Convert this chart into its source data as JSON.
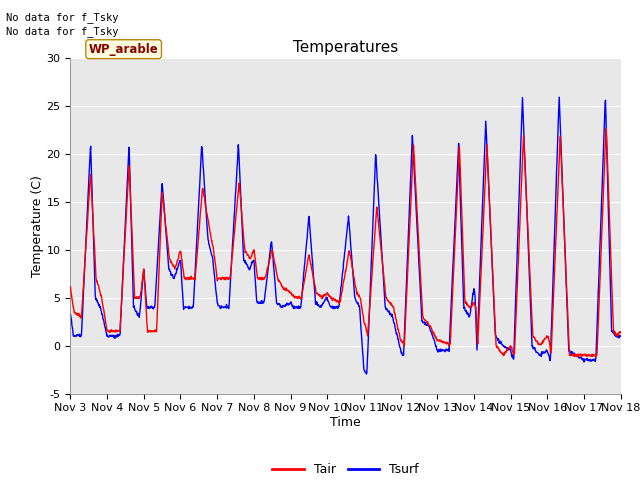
{
  "title": "Temperatures",
  "xlabel": "Time",
  "ylabel": "Temperature (C)",
  "ylim": [
    -5,
    30
  ],
  "xlim": [
    0,
    15
  ],
  "xtick_labels": [
    "Nov 3",
    "Nov 4",
    "Nov 5",
    "Nov 6",
    "Nov 7",
    "Nov 8",
    "Nov 9",
    "Nov 10",
    "Nov 11",
    "Nov 12",
    "Nov 13",
    "Nov 14",
    "Nov 15",
    "Nov 16",
    "Nov 17",
    "Nov 18"
  ],
  "xtick_positions": [
    0,
    1,
    2,
    3,
    4,
    5,
    6,
    7,
    8,
    9,
    10,
    11,
    12,
    13,
    14,
    15
  ],
  "ytick_labels": [
    "-5",
    "0",
    "5",
    "10",
    "15",
    "20",
    "25",
    "30"
  ],
  "ytick_positions": [
    -5,
    0,
    5,
    10,
    15,
    20,
    25,
    30
  ],
  "color_tair": "#ff0000",
  "color_tsurf": "#0000ff",
  "linewidth": 1.0,
  "background_color": "#e8e8e8",
  "annotation_line1": "No data for f_Tsky",
  "annotation_line2": "No data for f_Tsky",
  "label_text": "WP_arable",
  "legend_entries": [
    "Tair",
    "Tsurf"
  ],
  "title_fontsize": 11,
  "axis_fontsize": 9,
  "tick_fontsize": 8
}
